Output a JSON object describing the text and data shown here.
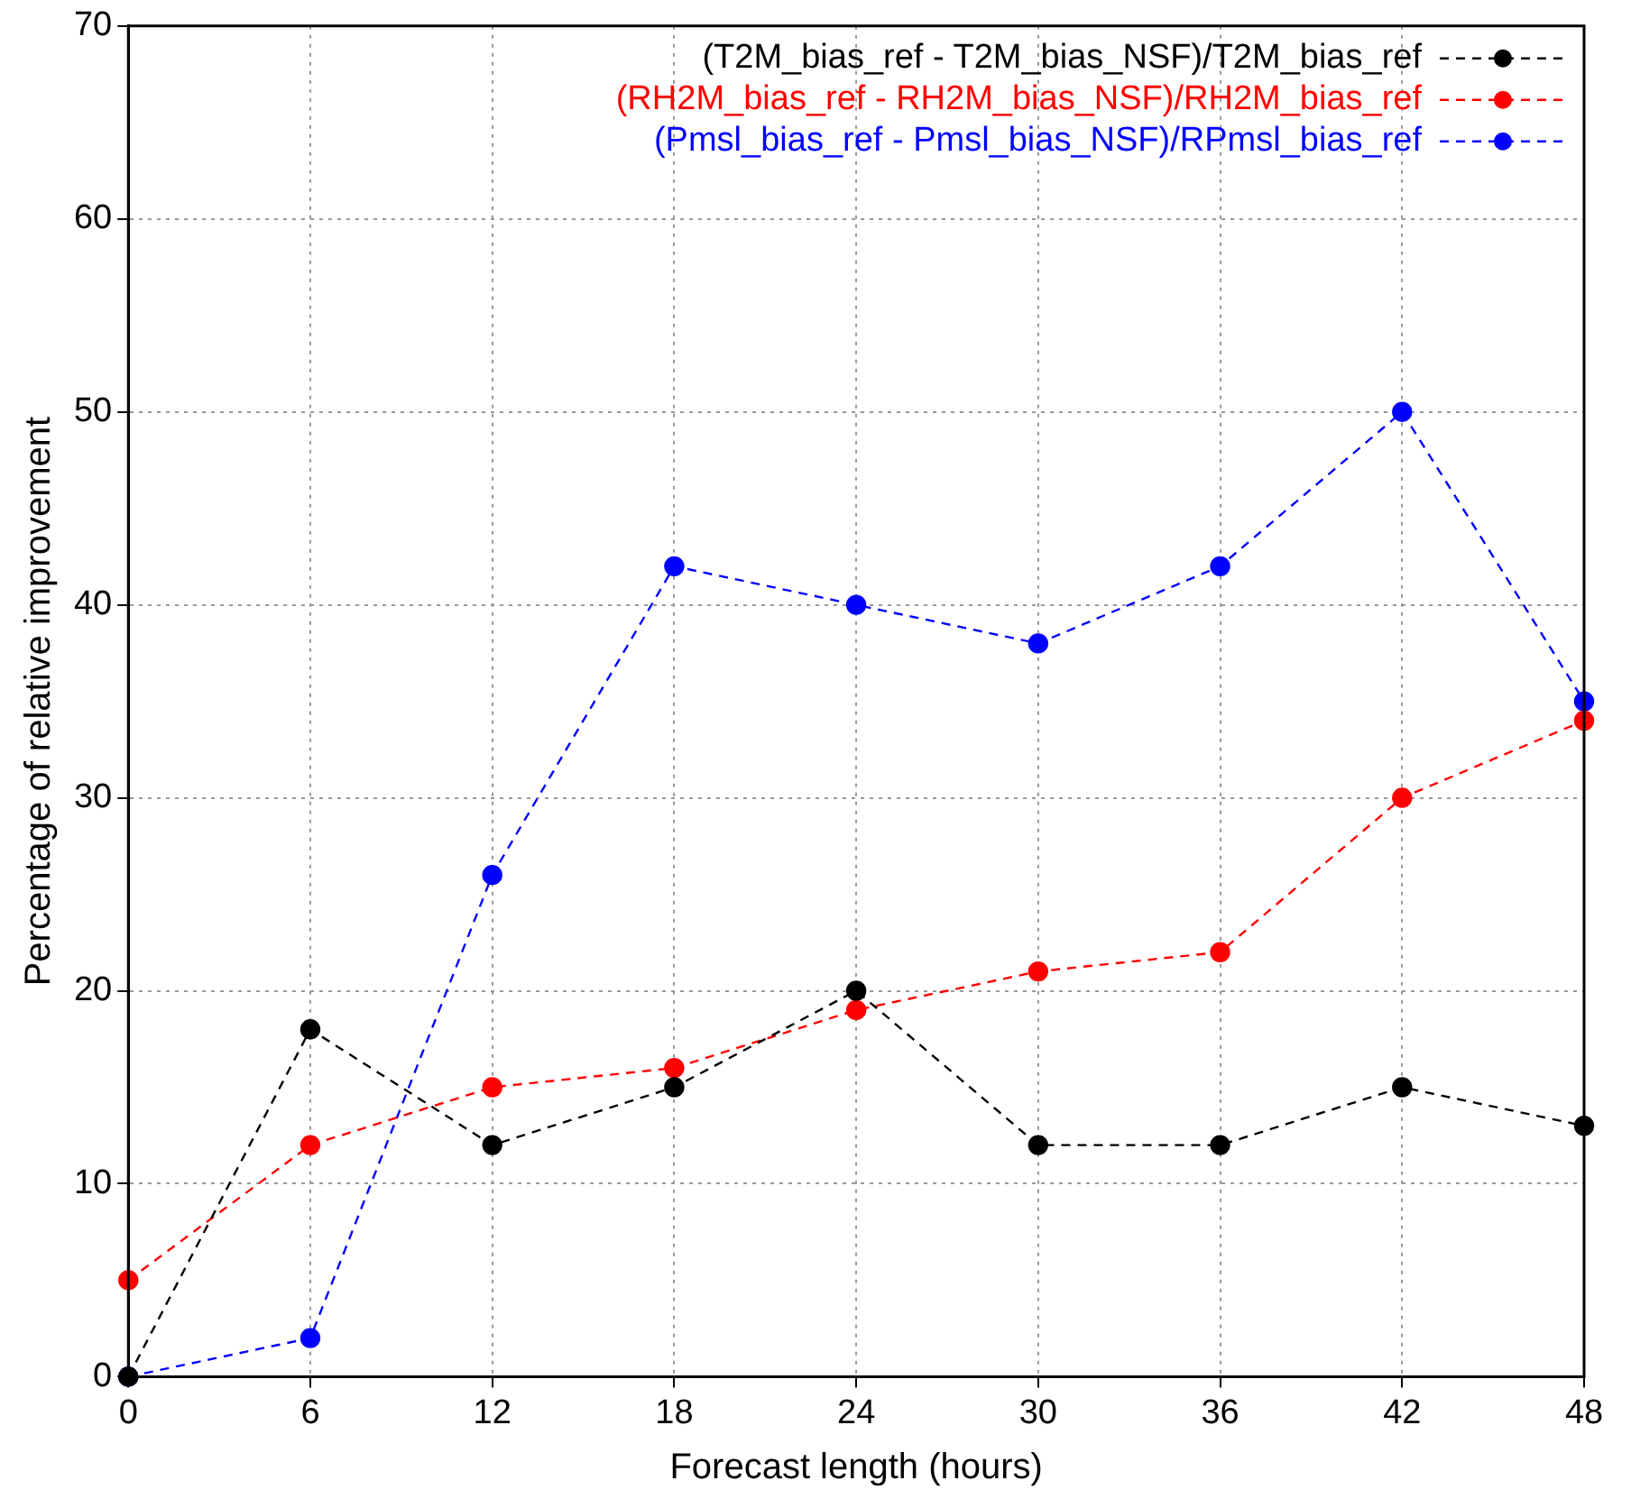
{
  "chart_data": {
    "type": "line",
    "xlabel": "Forecast length (hours)",
    "ylabel": "Percentage of relative improvement",
    "x": [
      0,
      6,
      12,
      18,
      24,
      30,
      36,
      42,
      48
    ],
    "xlim": [
      0,
      48
    ],
    "xticks": [
      0,
      6,
      12,
      18,
      24,
      30,
      36,
      42,
      48
    ],
    "ylim": [
      0,
      70
    ],
    "yticks": [
      0,
      10,
      20,
      30,
      40,
      50,
      60,
      70
    ],
    "grid": true,
    "legend": "top right",
    "marker": "circle",
    "line_style": "dashed",
    "series": [
      {
        "name": "(T2M_bias_ref - T2M_bias_NSF)/T2M_bias_ref",
        "color": "#000000",
        "values": [
          0,
          18,
          12,
          15,
          20,
          12,
          12,
          15,
          13
        ]
      },
      {
        "name": "(RH2M_bias_ref - RH2M_bias_NSF)/RH2M_bias_ref",
        "color": "#ff0000",
        "values": [
          5,
          12,
          15,
          16,
          19,
          21,
          22,
          30,
          34
        ]
      },
      {
        "name": "(Pmsl_bias_ref - Pmsl_bias_NSF)/RPmsl_bias_ref",
        "color": "#0000ff",
        "values": [
          0,
          2,
          26,
          42,
          40,
          38,
          42,
          50,
          35
        ]
      }
    ]
  }
}
